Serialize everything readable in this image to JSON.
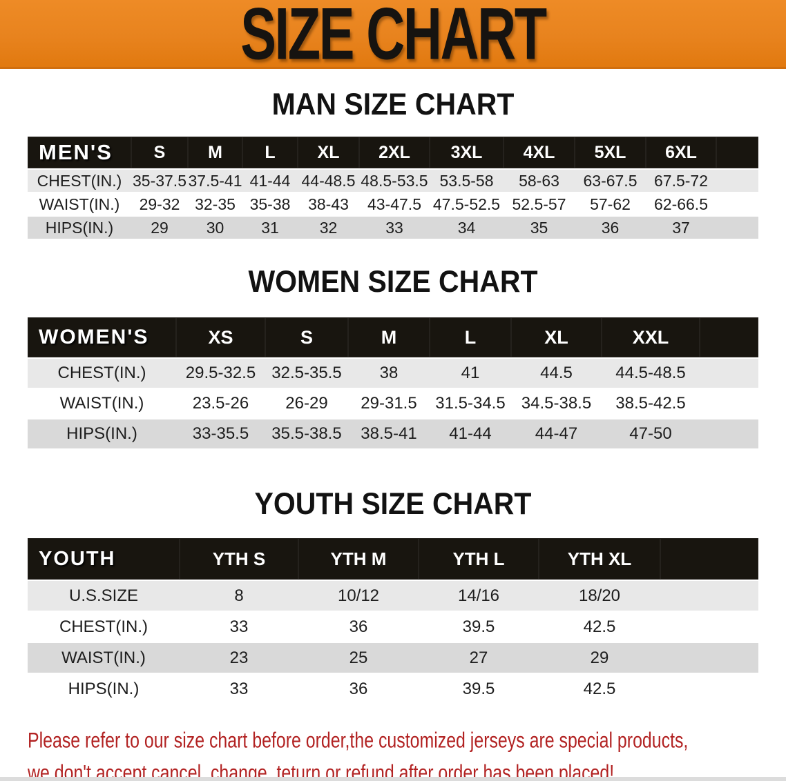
{
  "banner": {
    "title": "SIZE CHART",
    "bg_color": "#e8831e",
    "text_color": "#161310"
  },
  "sections": [
    {
      "heading": "MAN SIZE CHART",
      "header_label": "MEN'S",
      "columns": [
        "S",
        "M",
        "L",
        "XL",
        "2XL",
        "3XL",
        "4XL",
        "5XL",
        "6XL"
      ],
      "rows": [
        {
          "label": "CHEST(IN.)",
          "values": [
            "35-37.5",
            "37.5-41",
            "41-44",
            "44-48.5",
            "48.5-53.5",
            "53.5-58",
            "58-63",
            "63-67.5",
            "67.5-72"
          ]
        },
        {
          "label": "WAIST(IN.)",
          "values": [
            "29-32",
            "32-35",
            "35-38",
            "38-43",
            "43-47.5",
            "47.5-52.5",
            "52.5-57",
            "57-62",
            "62-66.5"
          ]
        },
        {
          "label": "HIPS(IN.)",
          "values": [
            "29",
            "30",
            "31",
            "32",
            "33",
            "34",
            "35",
            "36",
            "37"
          ]
        }
      ]
    },
    {
      "heading": "WOMEN SIZE CHART",
      "header_label": "WOMEN'S",
      "columns": [
        "XS",
        "S",
        "M",
        "L",
        "XL",
        "XXL"
      ],
      "rows": [
        {
          "label": "CHEST(IN.)",
          "values": [
            "29.5-32.5",
            "32.5-35.5",
            "38",
            "41",
            "44.5",
            "44.5-48.5"
          ]
        },
        {
          "label": "WAIST(IN.)",
          "values": [
            "23.5-26",
            "26-29",
            "29-31.5",
            "31.5-34.5",
            "34.5-38.5",
            "38.5-42.5"
          ]
        },
        {
          "label": "HIPS(IN.)",
          "values": [
            "33-35.5",
            "35.5-38.5",
            "38.5-41",
            "41-44",
            "44-47",
            "47-50"
          ]
        }
      ]
    },
    {
      "heading": "YOUTH SIZE CHART",
      "header_label": "YOUTH",
      "columns": [
        "YTH S",
        "YTH M",
        "YTH L",
        "YTH XL"
      ],
      "rows": [
        {
          "label": "U.S.SIZE",
          "values": [
            "8",
            "10/12",
            "14/16",
            "18/20"
          ]
        },
        {
          "label": "CHEST(IN.)",
          "values": [
            "33",
            "36",
            "39.5",
            "42.5"
          ]
        },
        {
          "label": "WAIST(IN.)",
          "values": [
            "23",
            "25",
            "27",
            "29"
          ]
        },
        {
          "label": "HIPS(IN.)",
          "values": [
            "33",
            "36",
            "39.5",
            "42.5"
          ]
        }
      ]
    }
  ],
  "disclaimer": {
    "line1": "Please refer to our size chart before order,the customized jerseys are special products,",
    "line2": "we don't accept cancel, change, teturn or refund after order has been placed!",
    "color": "#b22222"
  }
}
